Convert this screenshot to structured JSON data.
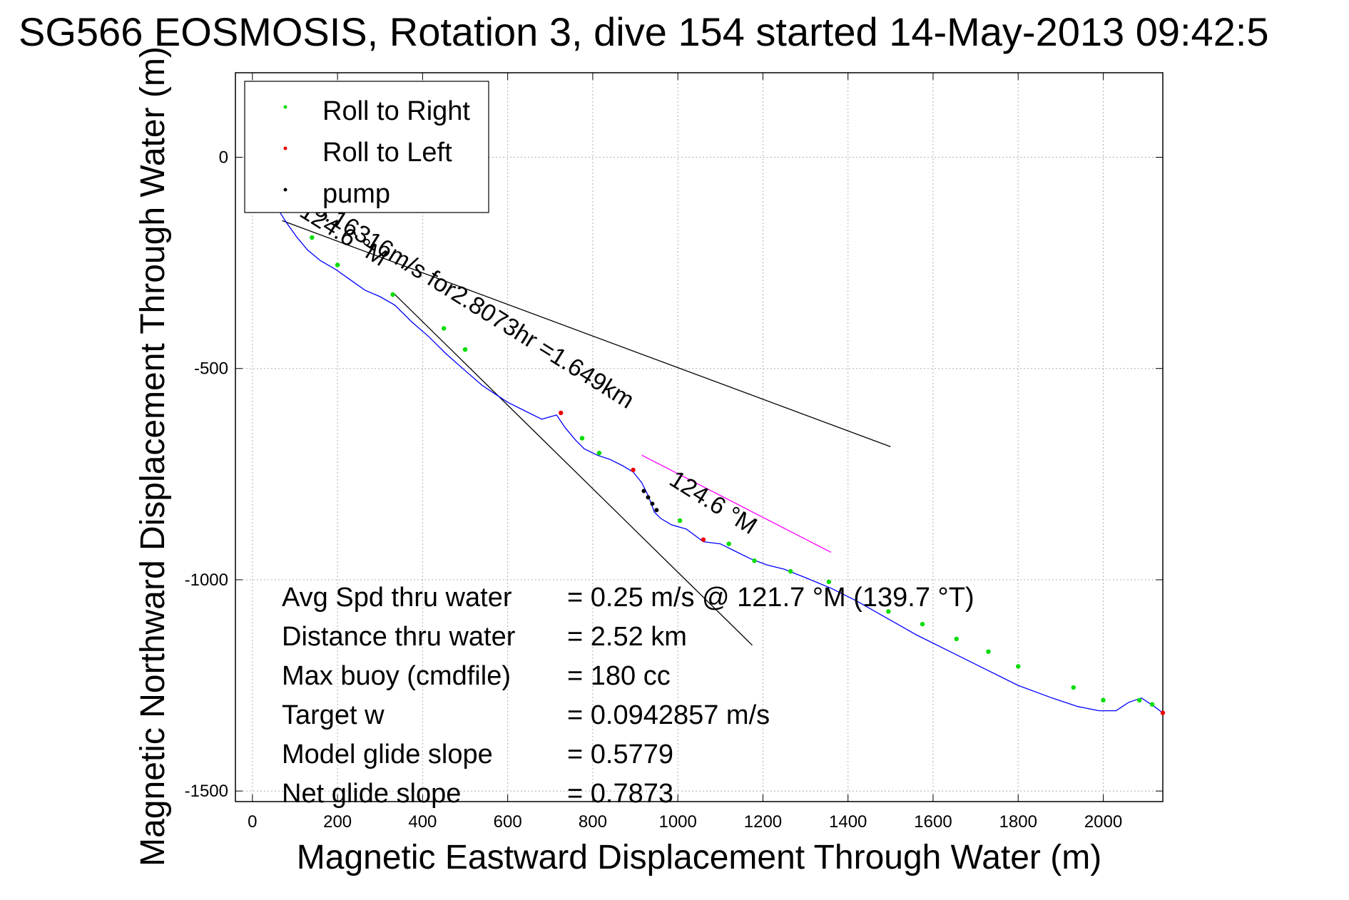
{
  "chart_data": {
    "type": "line",
    "title": "SG566 EOSMOSIS, Rotation 3, dive 154 started 14-May-2013 09:42:5",
    "xlabel": "Magnetic Eastward Displacement Through Water (m)",
    "ylabel": "Magnetic Northward Displacement Through Water (m)",
    "xlim": [
      -40,
      2140
    ],
    "ylim": [
      -1525,
      200
    ],
    "xticks": [
      0,
      200,
      400,
      600,
      800,
      1000,
      1200,
      1400,
      1600,
      1800,
      2000
    ],
    "yticks": [
      0,
      -500,
      -1000,
      -1500
    ],
    "grid": true,
    "legend": {
      "placement": "top-left",
      "entries": [
        {
          "label": "Roll to Right",
          "color": "#00dd00"
        },
        {
          "label": "Roll to Left",
          "color": "#ee0000"
        },
        {
          "label": "pump",
          "color": "#000000"
        }
      ]
    },
    "series": [
      {
        "color": "#0000ff",
        "x": [
          -10,
          -18,
          -15,
          -5,
          10,
          30,
          55,
          80,
          105,
          130,
          160,
          195,
          230,
          265,
          300,
          335,
          375,
          415,
          455,
          500,
          540,
          570,
          600,
          640,
          680,
          715,
          735,
          760,
          780,
          810,
          840,
          870,
          895,
          915,
          930,
          945,
          960,
          985,
          1020,
          1060,
          1100,
          1130,
          1170,
          1210,
          1250,
          1300,
          1360,
          1420,
          1490,
          1560,
          1640,
          1720,
          1800,
          1880,
          1940,
          1990,
          2030,
          2060,
          2090,
          2120,
          2140
        ],
        "y": [
          -80,
          -50,
          -10,
          0,
          -30,
          -75,
          -115,
          -155,
          -190,
          -220,
          -245,
          -265,
          -290,
          -315,
          -330,
          -350,
          -390,
          -425,
          -465,
          -505,
          -540,
          -560,
          -580,
          -600,
          -620,
          -610,
          -640,
          -670,
          -690,
          -705,
          -715,
          -730,
          -745,
          -770,
          -800,
          -840,
          -855,
          -870,
          -880,
          -910,
          -915,
          -930,
          -950,
          -965,
          -975,
          -995,
          -1020,
          -1050,
          -1090,
          -1130,
          -1170,
          -1210,
          -1250,
          -1280,
          -1300,
          -1310,
          -1310,
          -1290,
          -1280,
          -1300,
          -1315
        ]
      }
    ],
    "roll_right_x": [
      0,
      140,
      200,
      330,
      450,
      500,
      775,
      815,
      1005,
      1120,
      1180,
      1265,
      1355,
      1495,
      1575,
      1655,
      1730,
      1800,
      1930,
      2000,
      2085,
      2115
    ],
    "roll_right_y": [
      -60,
      -190,
      -255,
      -325,
      -405,
      -455,
      -665,
      -700,
      -860,
      -915,
      -955,
      -980,
      -1005,
      -1075,
      -1105,
      -1140,
      -1170,
      -1205,
      -1255,
      -1285,
      -1285,
      -1295
    ],
    "roll_left_x": [
      725,
      895,
      1060,
      2140
    ],
    "roll_left_y": [
      -605,
      -740,
      -905,
      -1315
    ],
    "pump_x": [
      920,
      930,
      940,
      950
    ],
    "pump_y": [
      -790,
      -805,
      -820,
      -835
    ],
    "reference_lines": [
      {
        "x": [
          70,
          1500
        ],
        "y": [
          -150,
          -685
        ],
        "color": "#000000"
      },
      {
        "x": [
          330,
          1175
        ],
        "y": [
          -320,
          -1155
        ],
        "color": "#000000"
      },
      {
        "x": [
          915,
          1360
        ],
        "y": [
          -705,
          -935
        ],
        "color": "#ff00ff"
      }
    ],
    "annotations": {
      "heading1": "124.6 °M",
      "heading2": "124.6 °M",
      "speed_label": "0.16316m/s for2.8073hr =1.649km"
    },
    "stats": [
      {
        "label": "Avg Spd thru water",
        "value": "=  0.25 m/s @ 121.7  °M (139.7 °T)"
      },
      {
        "label": "Distance thru water",
        "value": "=  2.52 km"
      },
      {
        "label": "Max buoy (cmdfile)",
        "value": "= 180 cc"
      },
      {
        "label": "Target w",
        "value": "= 0.0942857 m/s"
      },
      {
        "label": "Model glide slope",
        "value": "= 0.5779"
      },
      {
        "label": "Net glide slope",
        "value": "= 0.7873"
      }
    ]
  }
}
